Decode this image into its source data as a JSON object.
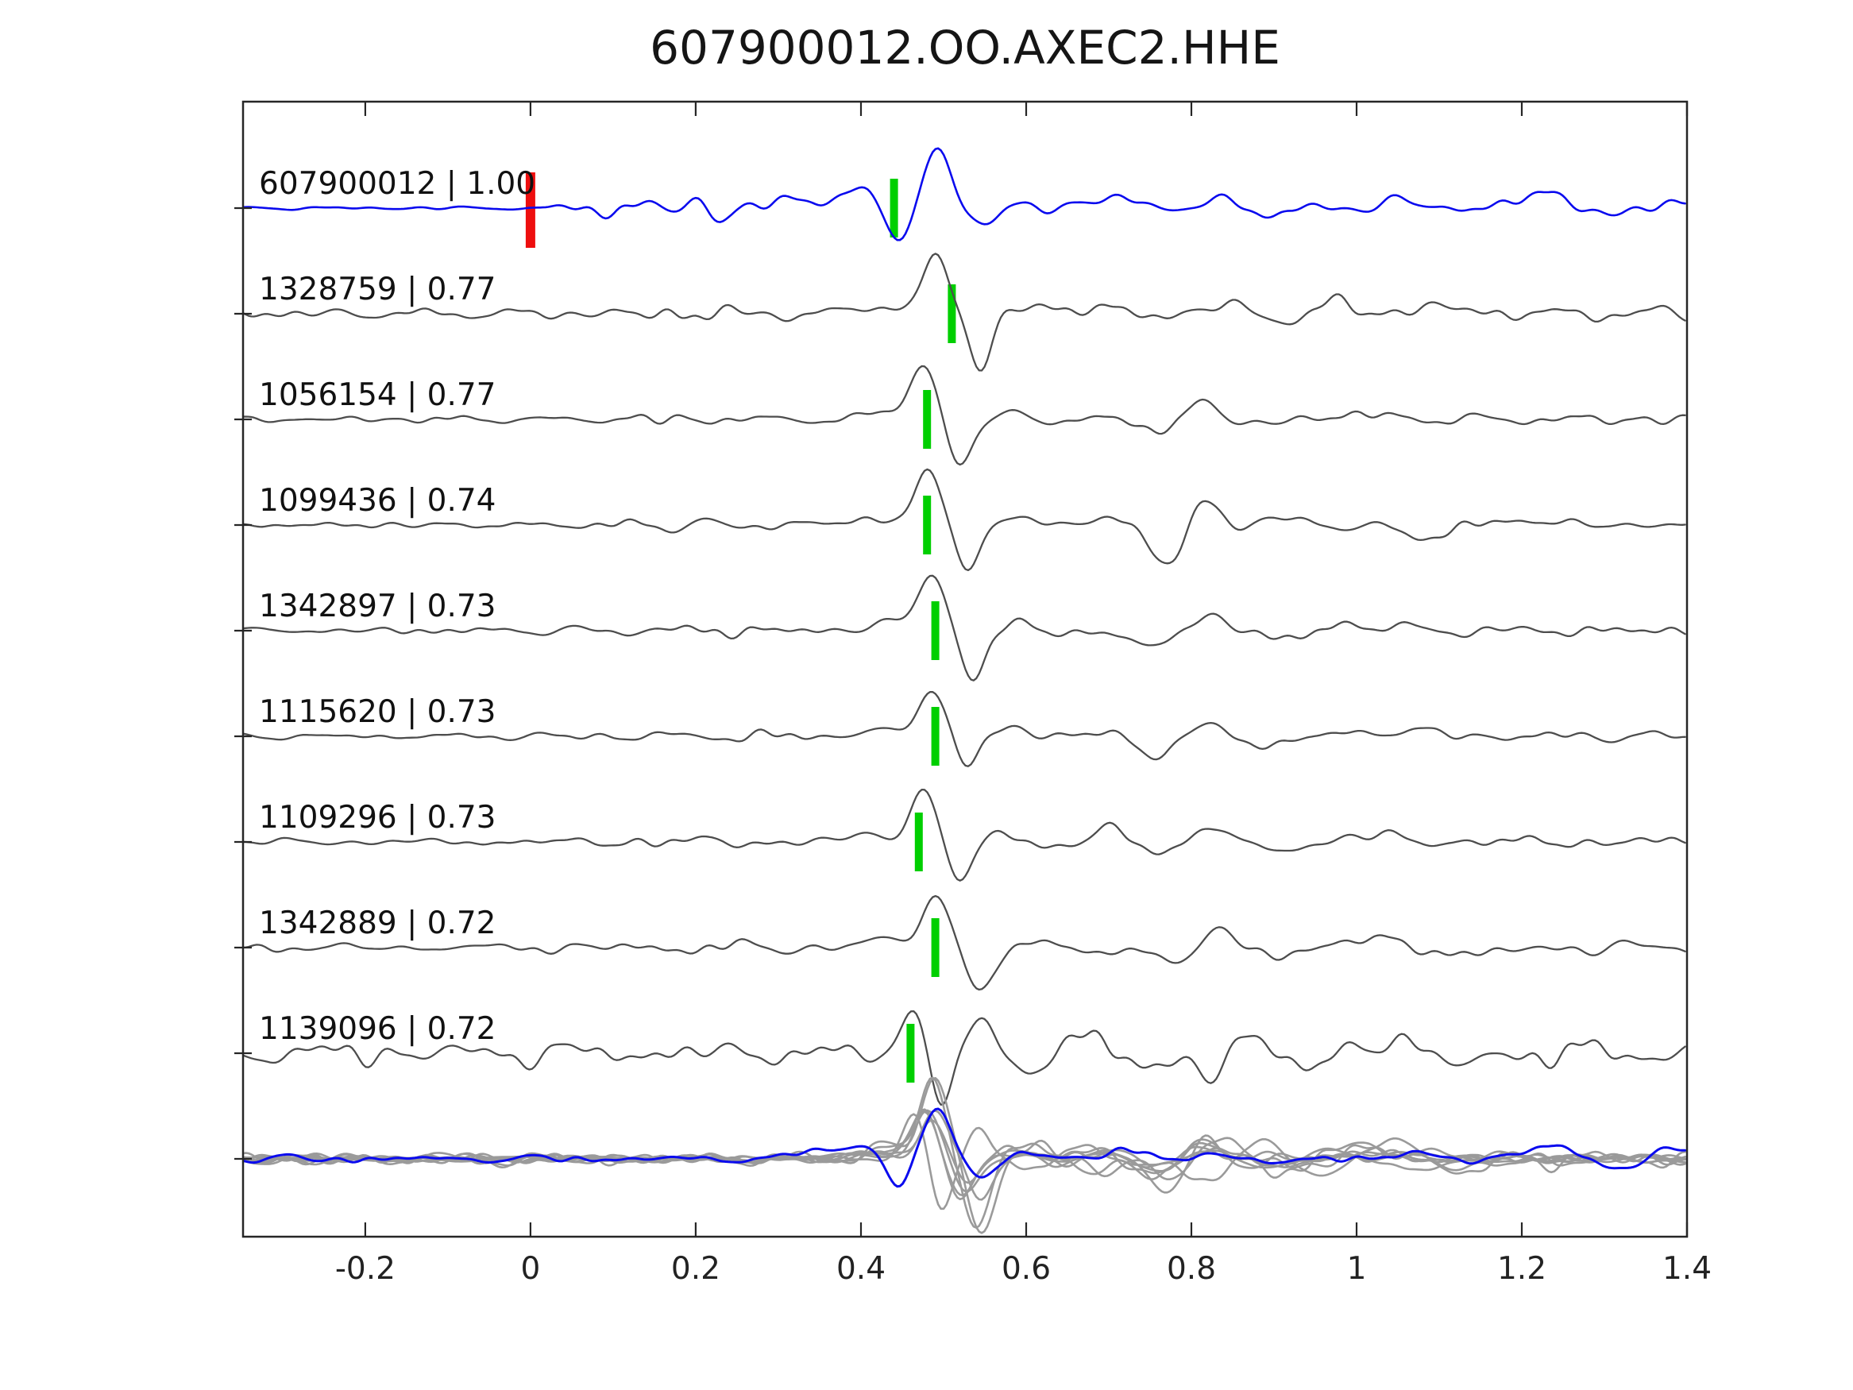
{
  "figure": {
    "background": "#ffffff",
    "colors": {
      "template_trace": "#0a0aee",
      "detection_trace": "#4d4d4d",
      "overlay_gray": "#9a9a9a",
      "overlay_blue": "#0a0aee",
      "pick_marker": "#00cf00",
      "reference_marker": "#ee0e0e",
      "axis": "#262626",
      "text": "#111111"
    }
  },
  "chart_data": {
    "type": "line",
    "title": "607900012.OO.AXEC2.HHE",
    "xlabel": "",
    "ylabel": "",
    "xlim": [
      -0.348,
      1.4
    ],
    "xticks": [
      -0.2,
      0,
      0.2,
      0.4,
      0.6,
      0.8,
      1,
      1.2,
      1.4
    ],
    "xtick_labels": [
      "-0.2",
      "0",
      "0.2",
      "0.4",
      "0.6",
      "0.8",
      "1",
      "1.2",
      "1.4"
    ],
    "grid": false,
    "legend": "none",
    "reference_pick": {
      "row_id": "607900012",
      "time": 0.0
    },
    "rows": [
      {
        "id": "607900012",
        "correlation": "1.00",
        "label": "607900012 | 1.00",
        "kind": "template",
        "pick_time": 0.44,
        "seed": 1,
        "noise_amp": 21,
        "noise_env": [
          [
            -0.35,
            0.1
          ],
          [
            0.02,
            0.12
          ],
          [
            0.08,
            0.55
          ],
          [
            0.12,
            1
          ],
          [
            0.27,
            1
          ],
          [
            0.34,
            0.5
          ],
          [
            0.42,
            0.28
          ],
          [
            0.55,
            0.33
          ],
          [
            0.7,
            0.45
          ],
          [
            0.95,
            0.38
          ],
          [
            1.15,
            0.5
          ],
          [
            1.4,
            0.5
          ]
        ],
        "features": [
          [
            0.345,
            14,
            0.03
          ],
          [
            0.398,
            22,
            0.026
          ],
          [
            0.447,
            -44,
            0.02
          ],
          [
            0.492,
            76,
            0.024
          ],
          [
            0.547,
            -22,
            0.027
          ],
          [
            0.6,
            7,
            0.03
          ],
          [
            0.728,
            17,
            0.04
          ],
          [
            0.78,
            -11,
            0.032
          ],
          [
            0.835,
            15,
            0.032
          ],
          [
            0.89,
            -8,
            0.04
          ],
          [
            1.05,
            6,
            0.05
          ],
          [
            1.24,
            19,
            0.05
          ],
          [
            1.31,
            -15,
            0.042
          ],
          [
            1.385,
            13,
            0.038
          ]
        ]
      },
      {
        "id": "1328759",
        "correlation": "0.77",
        "label": "1328759 | 0.77",
        "kind": "detection",
        "pick_time": 0.51,
        "seed": 2,
        "noise_amp": 13,
        "noise_env": [
          [
            -0.35,
            0.5
          ],
          [
            0.08,
            0.6
          ],
          [
            0.18,
            1
          ],
          [
            0.33,
            0.85
          ],
          [
            0.44,
            0.45
          ],
          [
            0.58,
            0.85
          ],
          [
            0.8,
            0.9
          ],
          [
            1.4,
            0.85
          ]
        ],
        "features": [
          [
            0.42,
            12,
            0.026
          ],
          [
            0.49,
            72,
            0.022
          ],
          [
            0.545,
            -62,
            0.02
          ],
          [
            0.61,
            9,
            0.03
          ],
          [
            0.7,
            12,
            0.035
          ],
          [
            0.757,
            -13,
            0.03
          ],
          [
            0.805,
            13,
            0.03
          ],
          [
            0.86,
            6,
            0.03
          ],
          [
            0.905,
            -9,
            0.035
          ],
          [
            0.97,
            11,
            0.04
          ],
          [
            1.1,
            8,
            0.05
          ]
        ]
      },
      {
        "id": "1056154",
        "correlation": "0.77",
        "label": "1056154 | 0.77",
        "kind": "detection",
        "pick_time": 0.48,
        "seed": 3,
        "noise_amp": 9,
        "noise_env": [
          [
            -0.35,
            0.5
          ],
          [
            0.08,
            0.6
          ],
          [
            0.18,
            1
          ],
          [
            0.33,
            0.85
          ],
          [
            0.44,
            0.45
          ],
          [
            0.58,
            0.85
          ],
          [
            0.8,
            0.9
          ],
          [
            1.4,
            0.85
          ]
        ],
        "features": [
          [
            0.43,
            10,
            0.025
          ],
          [
            0.475,
            68,
            0.022
          ],
          [
            0.521,
            -62,
            0.02
          ],
          [
            0.582,
            10,
            0.03
          ],
          [
            0.65,
            -7,
            0.032
          ],
          [
            0.71,
            8,
            0.035
          ],
          [
            0.762,
            -20,
            0.034
          ],
          [
            0.815,
            30,
            0.026
          ],
          [
            0.872,
            -9,
            0.032
          ],
          [
            1.0,
            6,
            0.05
          ]
        ]
      },
      {
        "id": "1099436",
        "correlation": "0.74",
        "label": "1099436 | 0.74",
        "kind": "detection",
        "pick_time": 0.48,
        "seed": 4,
        "noise_amp": 9,
        "noise_env": [
          [
            -0.35,
            0.5
          ],
          [
            0.08,
            0.6
          ],
          [
            0.18,
            1
          ],
          [
            0.33,
            0.85
          ],
          [
            0.44,
            0.45
          ],
          [
            0.58,
            0.85
          ],
          [
            0.8,
            0.9
          ],
          [
            1.4,
            0.85
          ]
        ],
        "features": [
          [
            0.4,
            10,
            0.026
          ],
          [
            0.481,
            72,
            0.022
          ],
          [
            0.528,
            -56,
            0.02
          ],
          [
            0.6,
            8,
            0.032
          ],
          [
            0.7,
            6,
            0.04
          ],
          [
            0.77,
            -46,
            0.028
          ],
          [
            0.816,
            28,
            0.022
          ],
          [
            0.9,
            7,
            0.04
          ],
          [
            1.08,
            -14,
            0.045
          ],
          [
            1.2,
            6,
            0.05
          ]
        ]
      },
      {
        "id": "1342897",
        "correlation": "0.73",
        "label": "1342897 | 0.73",
        "kind": "detection",
        "pick_time": 0.49,
        "seed": 5,
        "noise_amp": 10,
        "noise_env": [
          [
            -0.35,
            0.5
          ],
          [
            0.08,
            0.6
          ],
          [
            0.18,
            1
          ],
          [
            0.33,
            0.85
          ],
          [
            0.44,
            0.45
          ],
          [
            0.58,
            0.85
          ],
          [
            0.8,
            0.9
          ],
          [
            1.4,
            0.85
          ]
        ],
        "features": [
          [
            0.43,
            12,
            0.026
          ],
          [
            0.486,
            72,
            0.023
          ],
          [
            0.537,
            -62,
            0.021
          ],
          [
            0.6,
            10,
            0.03
          ],
          [
            0.68,
            -8,
            0.032
          ],
          [
            0.757,
            -18,
            0.03
          ],
          [
            0.82,
            16,
            0.03
          ],
          [
            0.93,
            -10,
            0.04
          ],
          [
            1.0,
            10,
            0.045
          ]
        ]
      },
      {
        "id": "1115620",
        "correlation": "0.73",
        "label": "1115620 | 0.73",
        "kind": "detection",
        "pick_time": 0.49,
        "seed": 6,
        "noise_amp": 9,
        "noise_env": [
          [
            -0.35,
            0.5
          ],
          [
            0.08,
            0.6
          ],
          [
            0.18,
            1
          ],
          [
            0.33,
            0.85
          ],
          [
            0.44,
            0.45
          ],
          [
            0.58,
            0.85
          ],
          [
            0.8,
            0.9
          ],
          [
            1.4,
            0.85
          ]
        ],
        "features": [
          [
            0.42,
            10,
            0.025
          ],
          [
            0.487,
            62,
            0.022
          ],
          [
            0.528,
            -38,
            0.02
          ],
          [
            0.585,
            9,
            0.03
          ],
          [
            0.69,
            6,
            0.04
          ],
          [
            0.75,
            -22,
            0.036
          ],
          [
            0.82,
            14,
            0.032
          ],
          [
            0.88,
            -12,
            0.036
          ],
          [
            1.05,
            8,
            0.05
          ]
        ]
      },
      {
        "id": "1109296",
        "correlation": "0.73",
        "label": "1109296 | 0.73",
        "kind": "detection",
        "pick_time": 0.47,
        "seed": 7,
        "noise_amp": 9,
        "noise_env": [
          [
            -0.35,
            0.5
          ],
          [
            0.08,
            0.6
          ],
          [
            0.18,
            1
          ],
          [
            0.33,
            0.85
          ],
          [
            0.44,
            0.45
          ],
          [
            0.58,
            0.85
          ],
          [
            0.8,
            0.9
          ],
          [
            1.4,
            0.85
          ]
        ],
        "features": [
          [
            0.41,
            11,
            0.026
          ],
          [
            0.476,
            66,
            0.022
          ],
          [
            0.52,
            -52,
            0.02
          ],
          [
            0.576,
            12,
            0.028
          ],
          [
            0.64,
            -8,
            0.03
          ],
          [
            0.7,
            14,
            0.035
          ],
          [
            0.76,
            -12,
            0.032
          ],
          [
            0.822,
            18,
            0.03
          ],
          [
            0.9,
            -10,
            0.04
          ],
          [
            1.02,
            7,
            0.05
          ]
        ]
      },
      {
        "id": "1342889",
        "correlation": "0.72",
        "label": "1342889 | 0.72",
        "kind": "detection",
        "pick_time": 0.49,
        "seed": 8,
        "noise_amp": 11,
        "noise_env": [
          [
            -0.35,
            0.5
          ],
          [
            0.08,
            0.6
          ],
          [
            0.18,
            1
          ],
          [
            0.33,
            0.85
          ],
          [
            0.44,
            0.45
          ],
          [
            0.58,
            0.85
          ],
          [
            0.8,
            0.9
          ],
          [
            1.4,
            0.85
          ]
        ],
        "features": [
          [
            0.425,
            12,
            0.026
          ],
          [
            0.491,
            68,
            0.023
          ],
          [
            0.546,
            -64,
            0.021
          ],
          [
            0.62,
            10,
            0.03
          ],
          [
            0.7,
            -8,
            0.036
          ],
          [
            0.772,
            -16,
            0.03
          ],
          [
            0.83,
            20,
            0.03
          ],
          [
            0.9,
            -12,
            0.036
          ],
          [
            1.0,
            10,
            0.05
          ],
          [
            1.15,
            -8,
            0.05
          ]
        ]
      },
      {
        "id": "1139096",
        "correlation": "0.72",
        "label": "1139096 | 0.72",
        "kind": "detection",
        "pick_time": 0.46,
        "seed": 9,
        "noise_amp": 18,
        "noise_env": [
          [
            -0.35,
            0.85
          ],
          [
            0.2,
            1
          ],
          [
            0.44,
            0.5
          ],
          [
            0.6,
            1
          ],
          [
            1.4,
            1
          ]
        ],
        "features": [
          [
            0.465,
            58,
            0.02
          ],
          [
            0.497,
            -72,
            0.018
          ],
          [
            0.545,
            40,
            0.022
          ],
          [
            0.6,
            -14,
            0.03
          ],
          [
            0.68,
            16,
            0.032
          ],
          [
            0.75,
            -12,
            0.032
          ],
          [
            0.82,
            -30,
            0.03
          ],
          [
            0.88,
            24,
            0.03
          ],
          [
            0.95,
            -20,
            0.032
          ],
          [
            1.05,
            22,
            0.04
          ],
          [
            1.12,
            -18,
            0.036
          ]
        ]
      }
    ],
    "overlay": {
      "description": "all detections overlaid with template",
      "noise_amp": 8,
      "noise_env": [
        [
          -0.35,
          0.85
        ],
        [
          0.44,
          0.7
        ],
        [
          0.6,
          1
        ],
        [
          1.4,
          0.9
        ]
      ],
      "members": [
        {
          "source_id": "1328759",
          "scale": 0.85,
          "seed": 21,
          "color_role": "overlay_gray"
        },
        {
          "source_id": "1056154",
          "scale": 0.9,
          "seed": 22,
          "color_role": "overlay_gray"
        },
        {
          "source_id": "1099436",
          "scale": 0.85,
          "seed": 23,
          "color_role": "overlay_gray"
        },
        {
          "source_id": "1342897",
          "scale": 1.35,
          "seed": 24,
          "color_role": "overlay_gray"
        },
        {
          "source_id": "1115620",
          "scale": 0.8,
          "seed": 25,
          "color_role": "overlay_gray"
        },
        {
          "source_id": "1109296",
          "scale": 0.9,
          "seed": 26,
          "color_role": "overlay_gray"
        },
        {
          "source_id": "1342889",
          "scale": 1.55,
          "seed": 27,
          "color_role": "overlay_gray"
        },
        {
          "source_id": "1139096",
          "scale": 1.0,
          "seed": 28,
          "color_role": "overlay_gray"
        },
        {
          "source_id": "607900012",
          "scale": 0.8,
          "seed": 29,
          "color_role": "overlay_blue"
        }
      ]
    }
  }
}
